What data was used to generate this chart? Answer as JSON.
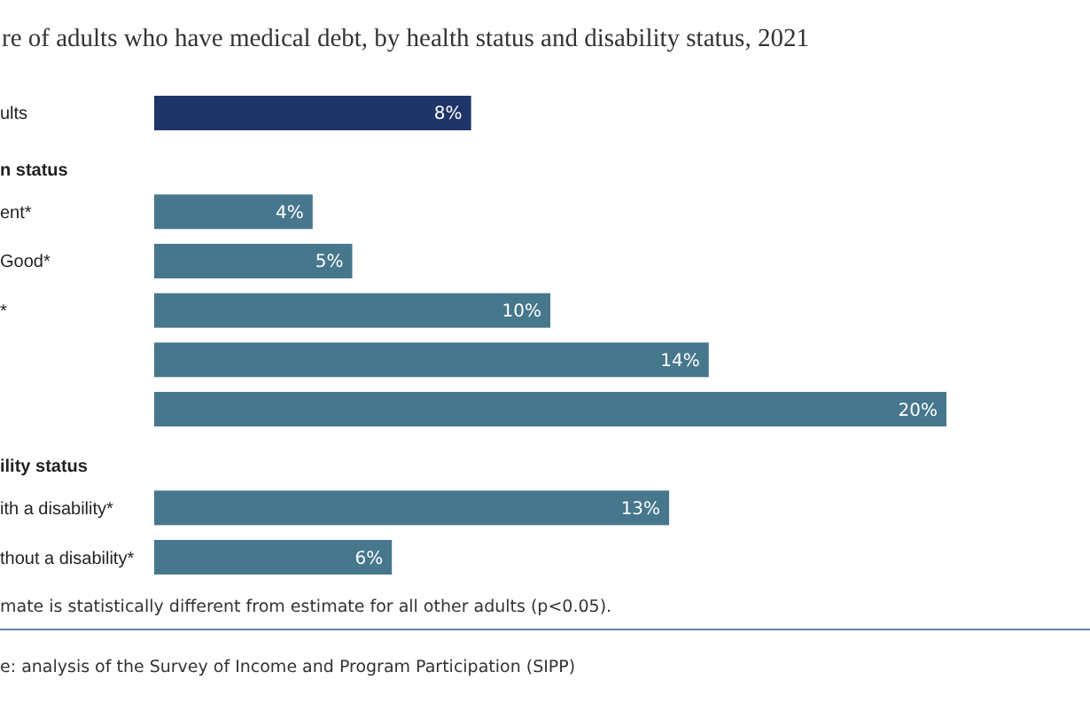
{
  "chart_data": {
    "type": "bar",
    "orientation": "horizontal",
    "title": "re of adults who have medical debt, by health status and disability status, 2021",
    "categories": [
      "ults",
      "n status",
      "ent*",
      "Good*",
      "*",
      null,
      null,
      "ility status",
      "ith a disability*",
      "thout a disability*"
    ],
    "values": [
      8,
      null,
      4,
      5,
      10,
      14,
      20,
      null,
      13,
      6
    ],
    "colors": [
      "#1f3568",
      null,
      "#46778d",
      "#46778d",
      "#46778d",
      "#46778d",
      "#46778d",
      null,
      "#46778d",
      "#46778d"
    ],
    "value_labels": [
      "8%",
      null,
      "4%",
      "5%",
      "10%",
      "14%",
      "20%",
      null,
      "13%",
      "6%"
    ],
    "annotations": [
      "mate is statistically different from estimate for all other adults (p<0.05).",
      "e: analysis of the Survey of Income and Program Participation (SIPP)"
    ]
  }
}
